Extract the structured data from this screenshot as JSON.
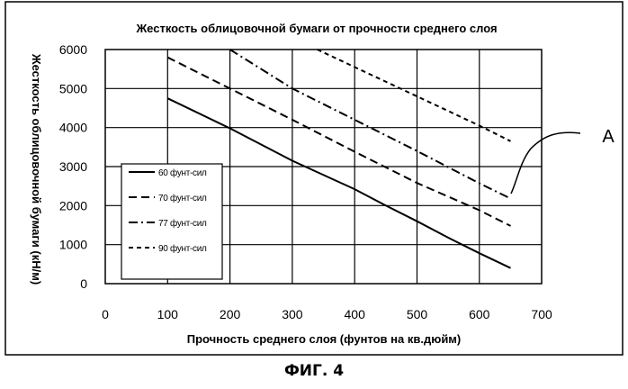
{
  "figure_caption": "ФИГ. 4",
  "callout_label": "A",
  "chart_data": {
    "type": "line",
    "title": "Жесткость облицовочной бумаги от прочности среднего слоя",
    "xlabel": "Прочность среднего слоя (фунтов на кв.дюйм)",
    "ylabel": "Жесткость облицовочной бумаги (кН/м)",
    "xlim": [
      0,
      700
    ],
    "ylim": [
      0,
      6000
    ],
    "x_ticks": [
      "0",
      "100",
      "200",
      "300",
      "400",
      "500",
      "600",
      "700"
    ],
    "y_ticks": [
      "0",
      "1000",
      "2000",
      "3000",
      "4000",
      "5000",
      "6000"
    ],
    "grid": true,
    "legend_position": "lower-left",
    "series": [
      {
        "name": "60 фунт-сил",
        "dash": "solid",
        "x": [
          100,
          200,
          300,
          400,
          450,
          500,
          550,
          600,
          650
        ],
        "y": [
          4750,
          3980,
          3150,
          2420,
          2000,
          1600,
          1180,
          780,
          400
        ]
      },
      {
        "name": "70 фунт-сил",
        "dash": "dashed",
        "x": [
          100,
          200,
          300,
          400,
          500,
          600,
          650
        ],
        "y": [
          5800,
          5000,
          4200,
          3380,
          2580,
          1880,
          1480
        ]
      },
      {
        "name": "77 фунт-сил",
        "dash": "dashdot",
        "x": [
          200,
          300,
          400,
          500,
          600,
          650
        ],
        "y": [
          6050,
          5000,
          4200,
          3400,
          2570,
          2180
        ]
      },
      {
        "name": "90 фунт-сил",
        "dash": "shortdash",
        "x": [
          340,
          400,
          500,
          600,
          650
        ],
        "y": [
          6050,
          5550,
          4800,
          4050,
          3650
        ]
      }
    ]
  }
}
